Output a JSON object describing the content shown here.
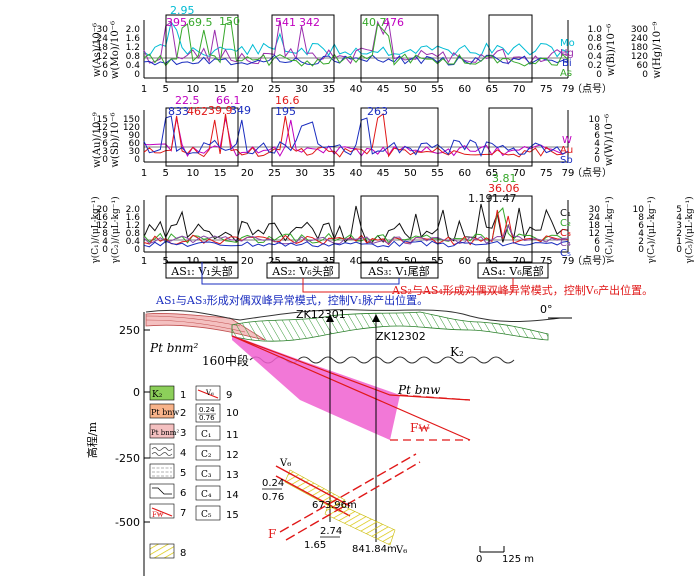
{
  "panel1": {
    "left_axis_1": "w(As)/10⁻⁶",
    "left_axis_2": "w(Mo)/10⁻⁶",
    "right_axis_1": "w(Bi)/10⁻⁶",
    "right_axis_2": "w(Hg)/10⁻⁹",
    "left_ticks_1": [
      "30",
      "24",
      "18",
      "12",
      "6",
      "0"
    ],
    "left_ticks_2": [
      "2.0",
      "1.6",
      "1.2",
      "0.8",
      "0.4",
      "0"
    ],
    "right_ticks_1": [
      "1.0",
      "0.8",
      "0.6",
      "0.4",
      "0.2",
      "0"
    ],
    "right_ticks_2": [
      "300",
      "240",
      "180",
      "120",
      "60",
      "0"
    ],
    "series_labels": [
      "Mo",
      "Hg",
      "Bi",
      "As"
    ],
    "series_colors": [
      "#00bcd4",
      "#9b2fae",
      "#1a2dbf",
      "#37a82b"
    ],
    "peak_labels": [
      {
        "text": "2.95",
        "color": "#00bcd4"
      },
      {
        "text": "395",
        "color": "#c000c0"
      },
      {
        "text": "69.5",
        "color": "#37a82b"
      },
      {
        "text": "150",
        "color": "#37a82b"
      },
      {
        "text": "541",
        "color": "#c000c0"
      },
      {
        "text": "342",
        "color": "#c000c0"
      },
      {
        "text": "40.7",
        "color": "#37a82b"
      },
      {
        "text": "476",
        "color": "#c000c0"
      }
    ]
  },
  "panel2": {
    "left_axis_1": "w(Au)/10⁻⁹",
    "left_axis_2": "w(Sb)/10⁻⁶",
    "right_axis": "w(W)/10⁻⁶",
    "left_ticks_1": [
      "15",
      "12",
      "9",
      "6",
      "3",
      "0"
    ],
    "left_ticks_2": [
      "150",
      "120",
      "90",
      "60",
      "30",
      "0"
    ],
    "right_ticks": [
      "10",
      "8",
      "6",
      "4",
      "2",
      "0"
    ],
    "series_labels": [
      "W",
      "Au",
      "Sb"
    ],
    "series_colors": [
      "#c000c0",
      "#e01818",
      "#1a2dbf"
    ],
    "peak_labels": [
      {
        "text": "22.5",
        "color": "#c000c0"
      },
      {
        "text": "66.1",
        "color": "#c000c0"
      },
      {
        "text": "833",
        "color": "#1a2dbf"
      },
      {
        "text": "462",
        "color": "#e01818"
      },
      {
        "text": "39.9",
        "color": "#e01818"
      },
      {
        "text": "349",
        "color": "#1a2dbf"
      },
      {
        "text": "16.6",
        "color": "#e01818"
      },
      {
        "text": "195",
        "color": "#1a2dbf"
      },
      {
        "text": "263",
        "color": "#1a2dbf"
      }
    ]
  },
  "panel3": {
    "left_axis_1": "γ(C₁)/(μL·kg⁻¹)",
    "left_axis_2": "γ(C₂)/(μL·kg⁻¹)",
    "right_axis_1": "γ(C₁)/(μL·kg⁻¹)",
    "right_axis_2": "γ(C₄)/(μL·kg⁻¹)",
    "right_axis_3": "γ(C₅)/(μL·kg⁻¹)",
    "left_ticks_1": [
      "20",
      "16",
      "12",
      "8",
      "4",
      "0"
    ],
    "left_ticks_2": [
      "2.0",
      "1.6",
      "1.2",
      "0.8",
      "0.4",
      "0"
    ],
    "right_ticks_1": [
      "30",
      "24",
      "18",
      "12",
      "6",
      "0"
    ],
    "right_ticks_2": [
      "10",
      "8",
      "6",
      "4",
      "2",
      "0"
    ],
    "right_ticks_3": [
      "5",
      "4",
      "3",
      "2",
      "1",
      "0"
    ],
    "series_labels": [
      "C₁",
      "C₂",
      "C₃",
      "C₄",
      "C₅"
    ],
    "series_colors": [
      "#111111",
      "#37a82b",
      "#e01818",
      "#8a4aa8",
      "#1a2dbf"
    ],
    "peak_labels": [
      {
        "text": "1.19",
        "color": "#111111"
      },
      {
        "text": "1.47",
        "color": "#111111"
      },
      {
        "text": "3.81",
        "color": "#37a82b"
      },
      {
        "text": "36.06",
        "color": "#e01818"
      }
    ],
    "segment_labels": [
      "AS₁: V₁头部",
      "AS₂: V₆头部",
      "AS₃: V₁尾部",
      "AS₄: V₆尾部"
    ]
  },
  "x_axis": {
    "ticks": [
      "1",
      "5",
      "10",
      "15",
      "20",
      "25",
      "30",
      "35",
      "40",
      "45",
      "50",
      "55",
      "60",
      "65",
      "70",
      "75",
      "79"
    ],
    "unit": "（点号）"
  },
  "note_blue": "AS₁与AS₃形成对偶双峰异常模式，控制V₁脉产出位置。",
  "note_red": "AS₂与AS₄形成对偶双峰异常模式，控制V₆产出位置。",
  "section": {
    "y_axis_label": "高程/m",
    "y_ticks": [
      "250",
      "0",
      "-250",
      "-500"
    ],
    "level_label": "160中段",
    "drill_1": "ZK12301",
    "drill_2": "ZK12302",
    "orientation": "0°",
    "unit_k2": "K₂",
    "unit_ptbnw": "Pt bnw",
    "unit_ptbnm": "Pt bnm²",
    "fault_label": "F₩",
    "fault_label_lower": "F",
    "vein_label_1": "V₆",
    "vein_label_2": "V₆",
    "assay_1a": "0.24",
    "assay_1b": "0.76",
    "depth_1": "673.96m",
    "assay_2a": "2.74",
    "assay_2b": "1.65",
    "depth_2": "841.84m",
    "scale_0": "0",
    "scale_1": "125 m"
  },
  "legend": [
    {
      "num": "1",
      "text": "K₂"
    },
    {
      "num": "2",
      "text": "Pt bnw"
    },
    {
      "num": "3",
      "text": "Pt bnm²"
    },
    {
      "num": "4",
      "text": ""
    },
    {
      "num": "5",
      "text": ""
    },
    {
      "num": "6",
      "text": ""
    },
    {
      "num": "7",
      "text": "F₩"
    },
    {
      "num": "8",
      "text": ""
    },
    {
      "num": "9",
      "text": "V₆"
    },
    {
      "num": "10",
      "text": "0.24 / 0.76"
    },
    {
      "num": "11",
      "text": "C₁"
    },
    {
      "num": "12",
      "text": "C₂"
    },
    {
      "num": "13",
      "text": "C₃"
    },
    {
      "num": "14",
      "text": "C₄"
    },
    {
      "num": "15",
      "text": "C₅"
    }
  ],
  "legend_values": {
    "v10a": "0.24",
    "v10b": "0.76"
  }
}
